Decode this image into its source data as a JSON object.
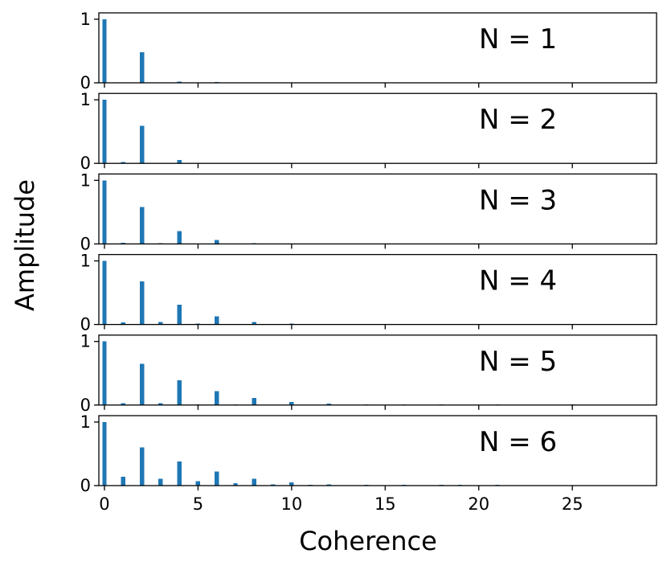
{
  "figure": {
    "xlabel": "Coherence",
    "ylabel": "Amplitude",
    "bar_color": "#1f77b4"
  },
  "chart_data": [
    {
      "type": "bar",
      "label": "N = 1",
      "x": [
        0,
        1,
        2,
        3,
        4,
        5,
        6,
        7,
        8,
        9,
        10,
        11,
        12,
        13,
        14,
        15,
        16,
        17,
        18,
        19,
        20,
        21,
        22,
        23,
        24,
        25,
        26,
        27,
        28,
        29
      ],
      "values": [
        1.0,
        0,
        0.48,
        0,
        0.02,
        0,
        0.005,
        0,
        0,
        0,
        0,
        0,
        0,
        0,
        0,
        0,
        0,
        0,
        0,
        0,
        0,
        0,
        0,
        0,
        0,
        0,
        0,
        0,
        0,
        0
      ],
      "xlim": [
        -0.3,
        29.5
      ],
      "ylim": [
        0,
        1.1
      ],
      "yticks": [
        0,
        1
      ],
      "xticks": [
        0,
        5,
        10,
        15,
        20,
        25
      ]
    },
    {
      "type": "bar",
      "label": "N = 2",
      "x": [
        0,
        1,
        2,
        3,
        4,
        5,
        6,
        7,
        8,
        9,
        10,
        11,
        12,
        13,
        14,
        15,
        16,
        17,
        18,
        19,
        20,
        21,
        22,
        23,
        24,
        25,
        26,
        27,
        28,
        29
      ],
      "values": [
        1.0,
        0.02,
        0.59,
        0,
        0.05,
        0,
        0,
        0,
        0,
        0,
        0,
        0,
        0,
        0,
        0,
        0,
        0,
        0,
        0,
        0,
        0,
        0,
        0,
        0,
        0,
        0,
        0,
        0,
        0,
        0
      ],
      "xlim": [
        -0.3,
        29.5
      ],
      "ylim": [
        0,
        1.1
      ],
      "yticks": [
        0,
        1
      ],
      "xticks": [
        0,
        5,
        10,
        15,
        20,
        25
      ]
    },
    {
      "type": "bar",
      "label": "N = 3",
      "x": [
        0,
        1,
        2,
        3,
        4,
        5,
        6,
        7,
        8,
        9,
        10,
        11,
        12,
        13,
        14,
        15,
        16,
        17,
        18,
        19,
        20,
        21,
        22,
        23,
        24,
        25,
        26,
        27,
        28,
        29
      ],
      "values": [
        1.0,
        0.02,
        0.58,
        0.01,
        0.2,
        0,
        0.06,
        0,
        0.005,
        0,
        0,
        0,
        0,
        0,
        0,
        0,
        0,
        0,
        0,
        0,
        0,
        0,
        0,
        0,
        0,
        0,
        0,
        0,
        0,
        0
      ],
      "xlim": [
        -0.3,
        29.5
      ],
      "ylim": [
        0,
        1.1
      ],
      "yticks": [
        0,
        1
      ],
      "xticks": [
        0,
        5,
        10,
        15,
        20,
        25
      ]
    },
    {
      "type": "bar",
      "label": "N = 4",
      "x": [
        0,
        1,
        2,
        3,
        4,
        5,
        6,
        7,
        8,
        9,
        10,
        11,
        12,
        13,
        14,
        15,
        16,
        17,
        18,
        19,
        20,
        21,
        22,
        23,
        24,
        25,
        26,
        27,
        28,
        29
      ],
      "values": [
        1.0,
        0.03,
        0.68,
        0.04,
        0.31,
        0.01,
        0.13,
        0,
        0.04,
        0,
        0.01,
        0,
        0,
        0,
        0,
        0,
        0,
        0,
        0,
        0,
        0,
        0,
        0,
        0,
        0,
        0,
        0,
        0,
        0,
        0
      ],
      "xlim": [
        -0.3,
        29.5
      ],
      "ylim": [
        0,
        1.1
      ],
      "yticks": [
        0,
        1
      ],
      "xticks": [
        0,
        5,
        10,
        15,
        20,
        25
      ]
    },
    {
      "type": "bar",
      "label": "N = 5",
      "x": [
        0,
        1,
        2,
        3,
        4,
        5,
        6,
        7,
        8,
        9,
        10,
        11,
        12,
        13,
        14,
        15,
        16,
        17,
        18,
        19,
        20,
        21,
        22,
        23,
        24,
        25,
        26,
        27,
        28,
        29
      ],
      "values": [
        1.0,
        0.03,
        0.65,
        0.03,
        0.39,
        0.01,
        0.22,
        0.01,
        0.11,
        0,
        0.05,
        0,
        0.02,
        0,
        0.01,
        0,
        0.005,
        0,
        0.005,
        0,
        0,
        0.005,
        0,
        0,
        0,
        0.005,
        0,
        0,
        0,
        0
      ],
      "xlim": [
        -0.3,
        29.5
      ],
      "ylim": [
        0,
        1.1
      ],
      "yticks": [
        0,
        1
      ],
      "xticks": [
        0,
        5,
        10,
        15,
        20,
        25
      ]
    },
    {
      "type": "bar",
      "label": "N = 6",
      "x": [
        0,
        1,
        2,
        3,
        4,
        5,
        6,
        7,
        8,
        9,
        10,
        11,
        12,
        13,
        14,
        15,
        16,
        17,
        18,
        19,
        20,
        21,
        22,
        23,
        24,
        25,
        26,
        27,
        28,
        29
      ],
      "values": [
        1.0,
        0.14,
        0.6,
        0.11,
        0.38,
        0.07,
        0.22,
        0.04,
        0.11,
        0.02,
        0.05,
        0.01,
        0.02,
        0,
        0.01,
        0,
        0.005,
        0,
        0.005,
        0.005,
        0,
        0.005,
        0,
        0,
        0,
        0,
        0,
        0,
        0,
        0
      ],
      "xlim": [
        -0.3,
        29.5
      ],
      "ylim": [
        0,
        1.1
      ],
      "yticks": [
        0,
        1
      ],
      "xticks": [
        0,
        5,
        10,
        15,
        20,
        25
      ]
    }
  ]
}
